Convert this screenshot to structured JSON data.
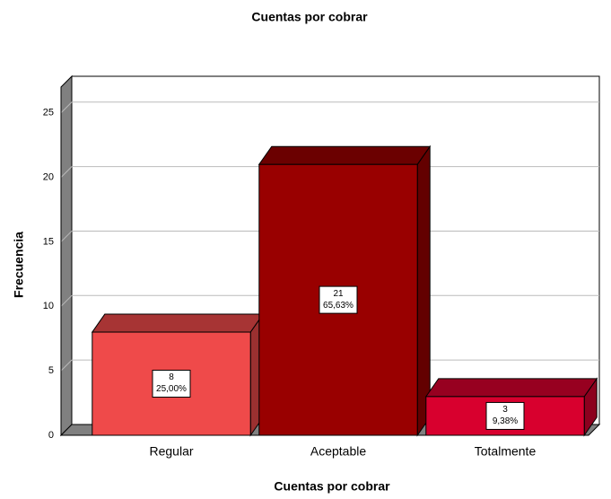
{
  "chart_data": {
    "type": "bar3d",
    "title": "Cuentas por cobrar",
    "x_label": "Cuentas por cobrar",
    "y_label": "Frecuencia",
    "categories": [
      "Regular",
      "Aceptable",
      "Totalmente"
    ],
    "values": [
      8,
      21,
      3
    ],
    "percentages": [
      25,
      65.63,
      9.38
    ],
    "percentage_labels": [
      "25,00%",
      "65,63%",
      "9,38%"
    ],
    "colors": [
      "#ef4a4a",
      "#990000",
      "#d8002e"
    ],
    "ylim": [
      0,
      27
    ],
    "yticks": [
      0,
      5,
      10,
      15,
      20,
      25
    ],
    "grid": true
  }
}
